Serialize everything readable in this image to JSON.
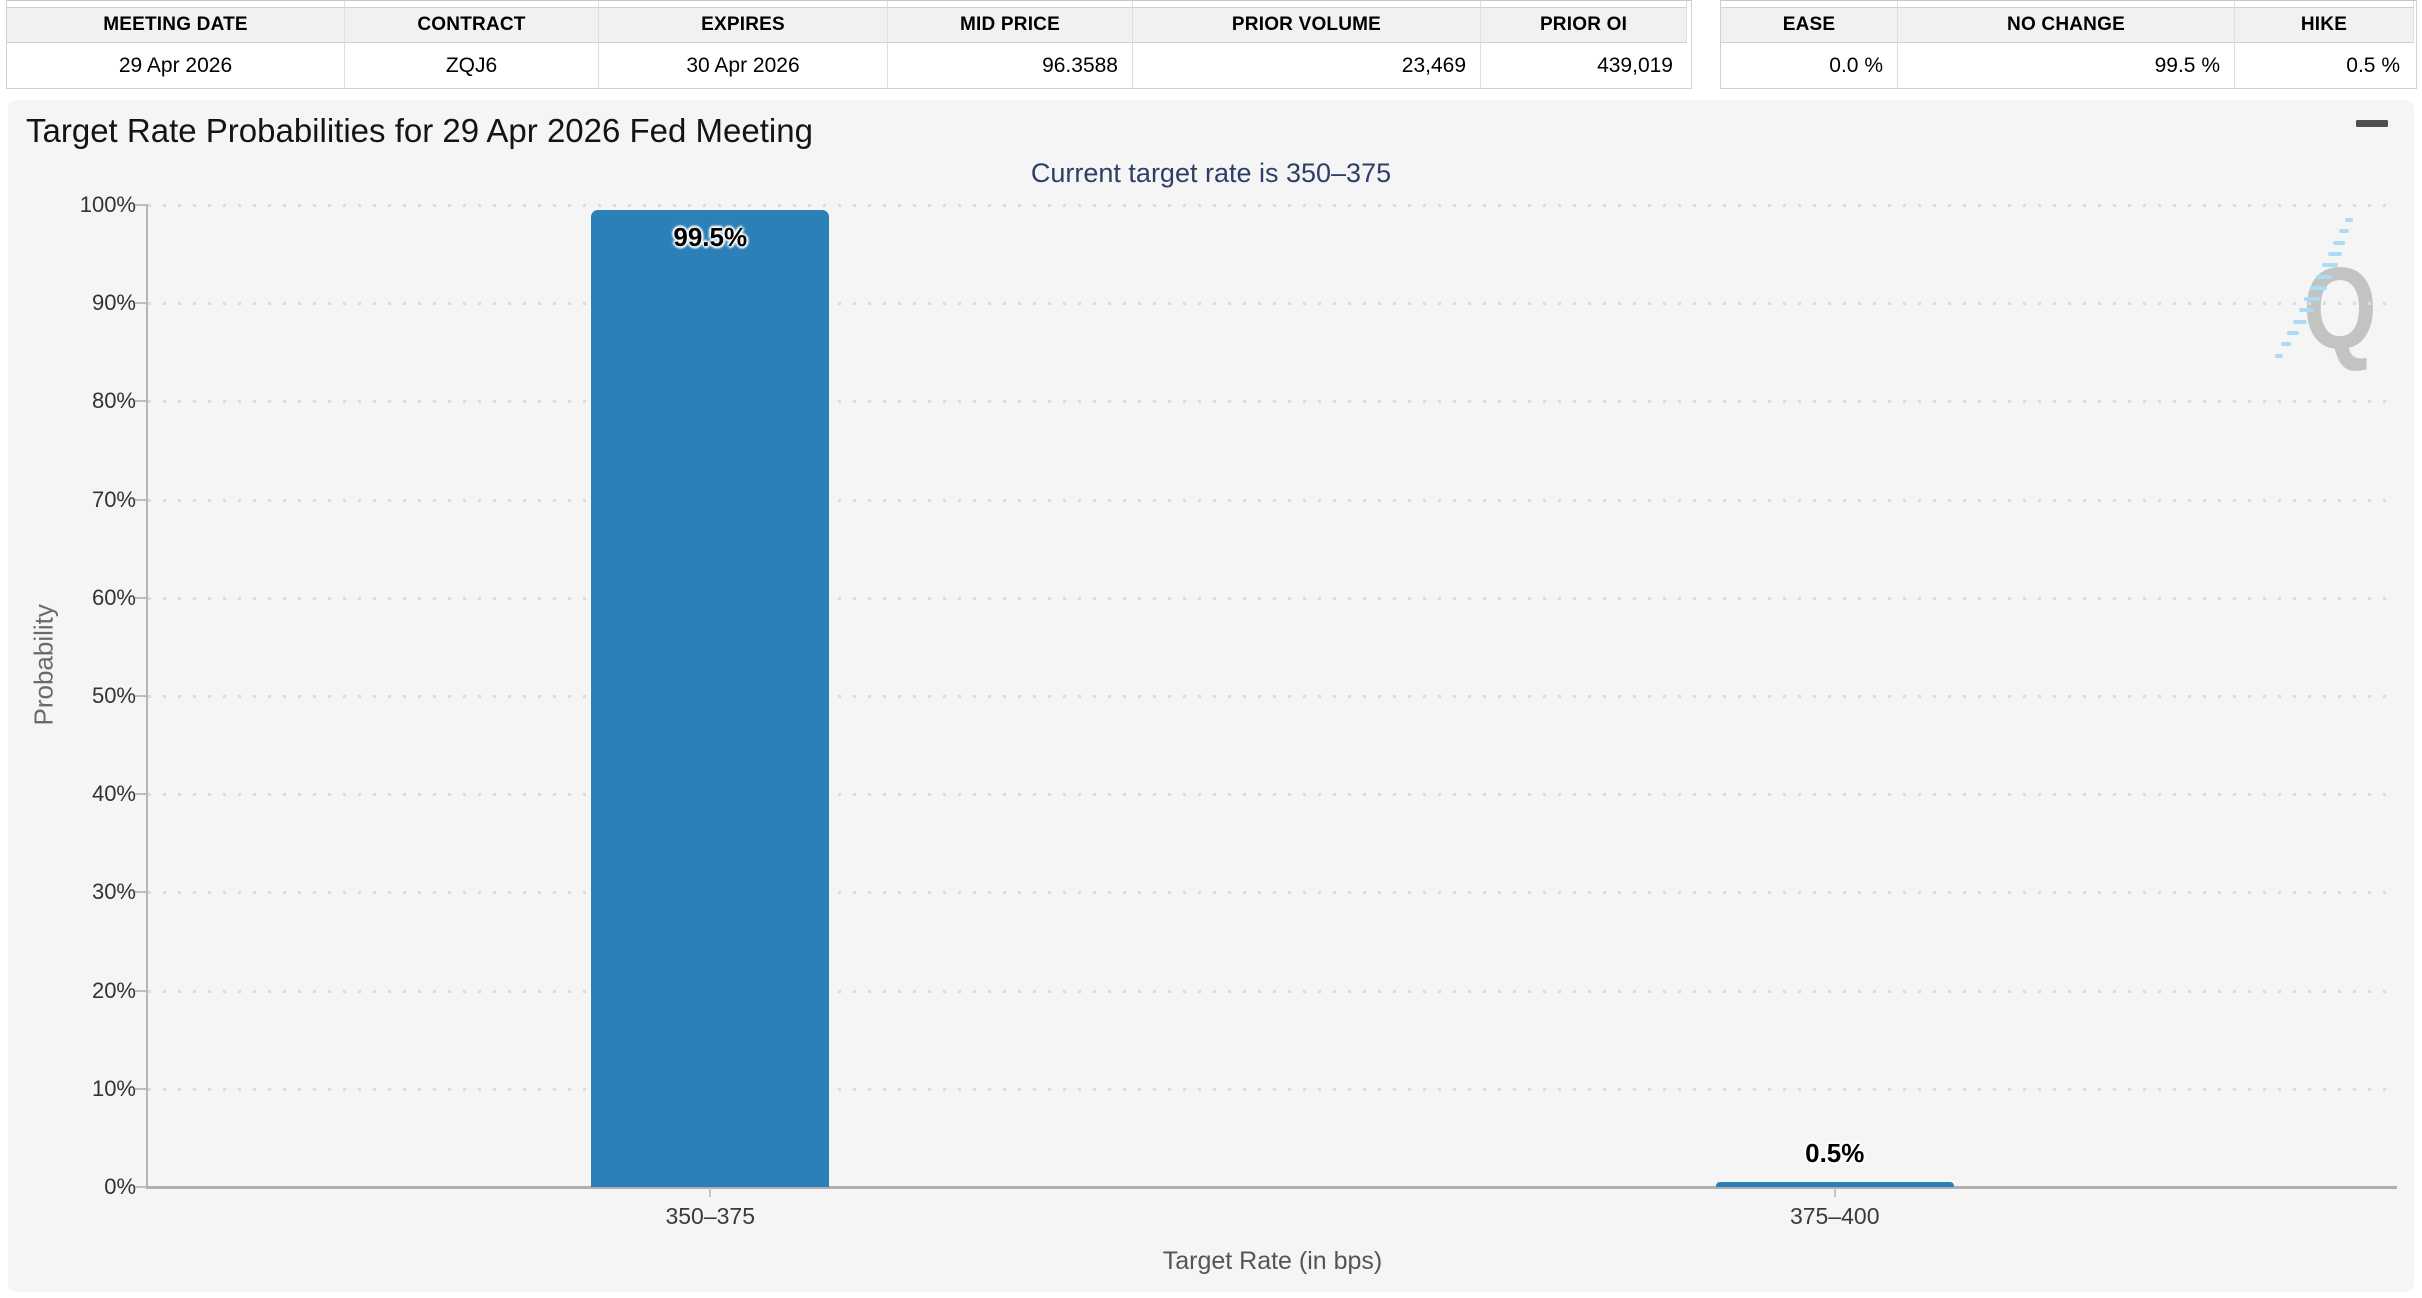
{
  "contract_table": {
    "columns": [
      "MEETING DATE",
      "CONTRACT",
      "EXPIRES",
      "MID PRICE",
      "PRIOR VOLUME",
      "PRIOR OI"
    ],
    "row": [
      "29 Apr 2026",
      "ZQJ6",
      "30 Apr 2026",
      "96.3588",
      "23,469",
      "439,019"
    ]
  },
  "probability_table": {
    "columns": [
      "EASE",
      "NO CHANGE",
      "HIKE"
    ],
    "row": [
      "0.0 %",
      "99.5 %",
      "0.5 %"
    ]
  },
  "chart_data": {
    "type": "bar",
    "title": "Target Rate Probabilities for 29 Apr 2026 Fed Meeting",
    "subtitle": "Current target rate is 350–375",
    "categories": [
      "350–375",
      "375–400"
    ],
    "values": [
      99.5,
      0.5
    ],
    "bar_labels": [
      "99.5%",
      "0.5%"
    ],
    "xlabel": "Target Rate (in bps)",
    "ylabel": "Probability",
    "ylim": [
      0,
      100
    ],
    "ytick_step": 10,
    "ytick_suffix": "%",
    "grid": "dotted-horizontal",
    "legend": "none",
    "bar_color": "#2c80b8",
    "subtitle_color": "#2e3f66",
    "background_color": "#f5f5f6"
  },
  "watermark": {
    "letter": "Q"
  }
}
